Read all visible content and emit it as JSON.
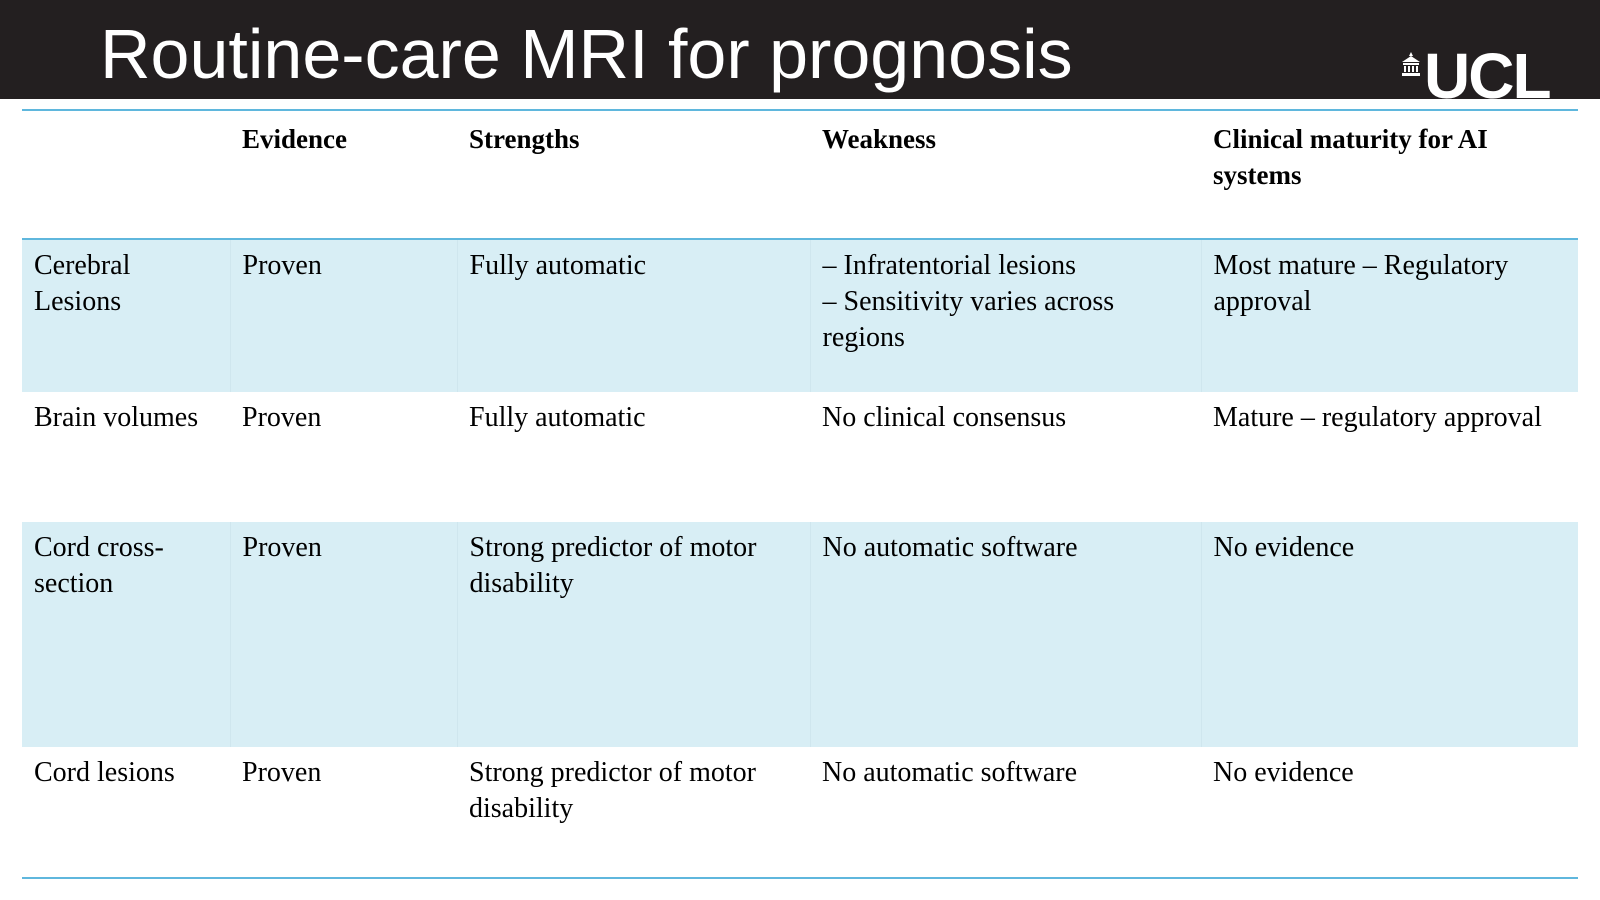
{
  "slide": {
    "title": "Routine-care MRI for prognosis",
    "logo_text": "UCL"
  },
  "colors": {
    "header_bar": "#231f20",
    "rule_line": "#5fb7dd",
    "band_fill": "#d8eef5"
  },
  "table": {
    "headers": [
      "",
      "Evidence",
      "Strengths",
      "Weakness",
      "Clinical maturity for AI systems"
    ],
    "rows": [
      {
        "measure": "Cerebral Lesions",
        "evidence": "Proven",
        "strengths": "Fully automatic",
        "weakness": [
          "– Infratentorial lesions",
          "– Sensitivity varies across regions"
        ],
        "maturity": "Most mature – Regulatory approval"
      },
      {
        "measure": "Brain volumes",
        "evidence": "Proven",
        "strengths": "Fully automatic",
        "weakness": [
          "No clinical consensus"
        ],
        "maturity": "Mature – regulatory approval"
      },
      {
        "measure": "Cord cross-section",
        "evidence": "Proven",
        "strengths": "Strong predictor of motor disability",
        "weakness": [
          "No automatic software"
        ],
        "maturity": "No evidence"
      },
      {
        "measure": "Cord lesions",
        "evidence": "Proven",
        "strengths": "Strong predictor of motor disability",
        "weakness": [
          "No automatic software"
        ],
        "maturity": "No evidence"
      }
    ]
  }
}
